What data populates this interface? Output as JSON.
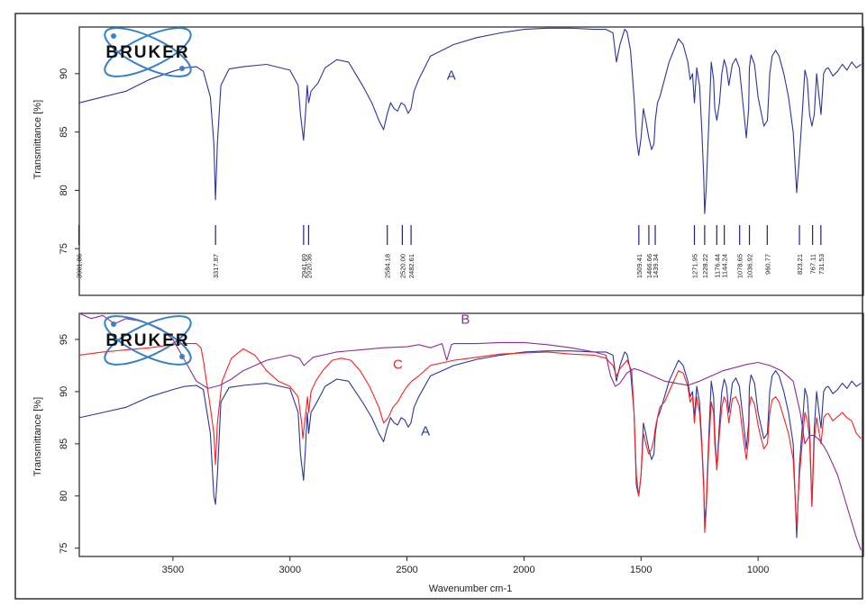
{
  "logo": {
    "text": "BRUKER"
  },
  "colors": {
    "A": "#2a35a0",
    "B": "#8a2c9c",
    "C": "#ff1f1f",
    "peak_marker": "#1f1f8a",
    "logo_blue": "#3a82c8"
  },
  "chart_data": [
    {
      "type": "line",
      "xlabel": "",
      "ylabel": "Transmittance [%]",
      "xlim": [
        3900,
        550
      ],
      "ylim": [
        71,
        94
      ],
      "yticks": [
        75,
        80,
        85,
        90
      ],
      "grid": false,
      "legend": "none",
      "series": [
        {
          "name": "A",
          "x": [
            3900,
            3800,
            3700,
            3600,
            3500,
            3450,
            3400,
            3370,
            3340,
            3325,
            3318,
            3310,
            3295,
            3260,
            3200,
            3100,
            3000,
            2965,
            2955,
            2942,
            2934,
            2926,
            2920,
            2910,
            2880,
            2850,
            2800,
            2750,
            2720,
            2690,
            2650,
            2620,
            2600,
            2585,
            2570,
            2555,
            2540,
            2525,
            2510,
            2495,
            2483,
            2470,
            2450,
            2400,
            2350,
            2300,
            2200,
            2100,
            2000,
            1900,
            1800,
            1700,
            1650,
            1620,
            1605,
            1590,
            1570,
            1560,
            1545,
            1530,
            1520,
            1510,
            1500,
            1490,
            1480,
            1467,
            1455,
            1445,
            1439,
            1430,
            1420,
            1400,
            1380,
            1360,
            1340,
            1320,
            1300,
            1290,
            1280,
            1272,
            1262,
            1250,
            1240,
            1232,
            1228,
            1222,
            1210,
            1200,
            1190,
            1185,
            1176,
            1165,
            1155,
            1145,
            1135,
            1125,
            1110,
            1095,
            1080,
            1070,
            1060,
            1050,
            1040,
            1037,
            1030,
            1015,
            1000,
            990,
            975,
            960,
            950,
            940,
            925,
            910,
            890,
            870,
            850,
            835,
            823,
            810,
            800,
            790,
            780,
            770,
            760,
            750,
            742,
            731,
            720,
            710,
            700,
            680,
            660,
            640,
            620,
            600,
            580,
            560
          ],
          "values": [
            87.5,
            88,
            88.5,
            89.5,
            90.2,
            90.5,
            90.6,
            90.2,
            88,
            84,
            79.2,
            84,
            89,
            90.4,
            90.6,
            90.8,
            90.3,
            89,
            86.5,
            84.3,
            86.5,
            89,
            87.5,
            88.5,
            89.2,
            90.5,
            91.2,
            91,
            90,
            89,
            87.5,
            86,
            85.2,
            86.5,
            87.5,
            87,
            86.8,
            87.5,
            87.3,
            86.6,
            87,
            88.5,
            89.5,
            91.5,
            92,
            92.5,
            93.1,
            93.5,
            93.8,
            93.9,
            93.9,
            93.8,
            93.8,
            93.5,
            91,
            92.5,
            93.8,
            93.6,
            92,
            88,
            84.5,
            83,
            84.5,
            87,
            86,
            84.5,
            83.5,
            84,
            86,
            87.5,
            88,
            89.5,
            91,
            92,
            93,
            92.5,
            91,
            89.5,
            90,
            87.5,
            90.5,
            89,
            85,
            81,
            78,
            80,
            86,
            91,
            89.5,
            87,
            86,
            87.5,
            90,
            91.2,
            90.5,
            89,
            90.8,
            91.3,
            90.5,
            88.5,
            86.5,
            84.5,
            87,
            90.5,
            91.6,
            90.8,
            88,
            87,
            85.5,
            86,
            90,
            91.5,
            92,
            91.5,
            90,
            88,
            85,
            79.8,
            83,
            87,
            90.3,
            89.5,
            86.5,
            85.5,
            86.5,
            90,
            88.5,
            86.5,
            90,
            90.4,
            90.5,
            89.8,
            90.2,
            90.8,
            90.3,
            91,
            90.5,
            90.8
          ]
        }
      ],
      "peak_labels": [
        "3901.86",
        "3317.87",
        "2941.69",
        "2920.36",
        "2584.18",
        "2520.00",
        "2482.61",
        "1509.41",
        "1466.66",
        "1439.34",
        "1271.95",
        "1228.22",
        "1176.44",
        "1144.24",
        "1078.65",
        "1036.92",
        "960.77",
        "823.21",
        "767.11",
        "731.53"
      ],
      "peak_positions": [
        3901.86,
        3317.87,
        2941.69,
        2920.36,
        2584.18,
        2520.0,
        2482.61,
        1509.41,
        1466.66,
        1439.34,
        1271.95,
        1228.22,
        1176.44,
        1144.24,
        1078.65,
        1036.92,
        960.77,
        823.21,
        767.11,
        731.53
      ],
      "annotations": [
        {
          "text": "A",
          "x": 2330,
          "y": 89.5
        }
      ]
    },
    {
      "type": "line",
      "xlabel": "Wavenumber cm-1",
      "ylabel": "Transmittance [%]",
      "xlim": [
        3900,
        550
      ],
      "ylim": [
        74.2,
        97.5
      ],
      "xticks": [
        3500,
        3000,
        2500,
        2000,
        1500,
        1000
      ],
      "yticks": [
        75,
        80,
        85,
        90,
        95
      ],
      "grid": false,
      "legend": "none",
      "series": [
        {
          "name": "A",
          "x": [
            3900,
            3800,
            3700,
            3600,
            3500,
            3450,
            3400,
            3370,
            3340,
            3325,
            3318,
            3310,
            3295,
            3260,
            3200,
            3100,
            3000,
            2965,
            2955,
            2942,
            2934,
            2926,
            2920,
            2910,
            2880,
            2850,
            2800,
            2750,
            2720,
            2690,
            2650,
            2620,
            2600,
            2585,
            2570,
            2555,
            2540,
            2525,
            2510,
            2495,
            2483,
            2470,
            2450,
            2400,
            2350,
            2300,
            2200,
            2100,
            2000,
            1900,
            1800,
            1700,
            1650,
            1620,
            1605,
            1590,
            1570,
            1560,
            1545,
            1530,
            1520,
            1510,
            1500,
            1490,
            1480,
            1467,
            1455,
            1445,
            1439,
            1430,
            1420,
            1400,
            1380,
            1360,
            1340,
            1320,
            1300,
            1290,
            1280,
            1272,
            1262,
            1250,
            1240,
            1232,
            1228,
            1222,
            1210,
            1200,
            1190,
            1185,
            1176,
            1165,
            1155,
            1145,
            1135,
            1125,
            1110,
            1095,
            1080,
            1070,
            1060,
            1050,
            1040,
            1037,
            1030,
            1015,
            1000,
            990,
            975,
            960,
            950,
            940,
            925,
            910,
            890,
            870,
            850,
            835,
            823,
            810,
            800,
            790,
            780,
            770,
            760,
            750,
            742,
            731,
            720,
            710,
            700,
            680,
            660,
            640,
            620,
            600,
            580,
            560
          ],
          "values": [
            87.5,
            88,
            88.5,
            89.5,
            90.2,
            90.5,
            90.6,
            90.2,
            86,
            80,
            79.2,
            82,
            89,
            90.4,
            90.6,
            90.8,
            90.3,
            88,
            84,
            81.5,
            84.5,
            88,
            86,
            88,
            89.2,
            90.5,
            91.2,
            91,
            90,
            89,
            87.5,
            86,
            85.2,
            86.5,
            87.5,
            87,
            86.8,
            87.5,
            87.3,
            86.6,
            87,
            88.5,
            89.5,
            91.5,
            92,
            92.5,
            93.1,
            93.5,
            93.8,
            93.9,
            93.9,
            93.8,
            93.8,
            93.5,
            91,
            92.5,
            93.8,
            93.6,
            92,
            88,
            81,
            80,
            82,
            87,
            86,
            84.5,
            83.5,
            84,
            86,
            87.5,
            88,
            89.5,
            91,
            92,
            93,
            92.5,
            91,
            89.5,
            90,
            87.5,
            90.5,
            89,
            85,
            81,
            77.5,
            79,
            86,
            91,
            89.5,
            86,
            82.5,
            87,
            90,
            91.2,
            90.5,
            88,
            90.8,
            91.3,
            90.5,
            88.5,
            86.5,
            84.5,
            87,
            90.5,
            91.6,
            90.8,
            88,
            87,
            85.5,
            86,
            90,
            91.5,
            92,
            91.5,
            90,
            88,
            85,
            76,
            83,
            87,
            90.3,
            89.5,
            86.5,
            79,
            86.5,
            90,
            88.5,
            86.5,
            90,
            90.4,
            90.5,
            89.8,
            90.2,
            90.8,
            90.3,
            91,
            90.5,
            90.8
          ]
        },
        {
          "name": "B",
          "x": [
            3900,
            3850,
            3800,
            3750,
            3700,
            3650,
            3600,
            3550,
            3500,
            3450,
            3400,
            3350,
            3300,
            3250,
            3200,
            3100,
            3000,
            2960,
            2940,
            2900,
            2800,
            2700,
            2600,
            2500,
            2450,
            2400,
            2350,
            2330,
            2310,
            2300,
            2200,
            2100,
            2000,
            1900,
            1800,
            1700,
            1650,
            1630,
            1610,
            1590,
            1560,
            1530,
            1500,
            1450,
            1400,
            1350,
            1300,
            1250,
            1200,
            1150,
            1100,
            1050,
            1000,
            950,
            900,
            850,
            820,
            800,
            780,
            760,
            740,
            720,
            700,
            680,
            660,
            640,
            620,
            600,
            580,
            560
          ],
          "values": [
            97.5,
            97,
            97.3,
            96.5,
            97,
            96.8,
            96.5,
            96,
            95,
            93,
            91,
            90.3,
            90.6,
            91.2,
            92,
            93,
            93.5,
            93.2,
            92.5,
            93.3,
            93.8,
            94,
            94.2,
            94.3,
            94.5,
            94.2,
            94.6,
            93,
            94.5,
            94.6,
            94.6,
            94.7,
            94.7,
            94.5,
            94.2,
            93.8,
            93.5,
            91.5,
            90.5,
            90.8,
            91.8,
            92.2,
            92,
            91.5,
            91,
            90.8,
            90.6,
            91,
            91.5,
            92,
            92.3,
            92.6,
            92.8,
            92.5,
            92,
            91,
            88,
            85,
            85.8,
            85.8,
            85.4,
            84.8,
            84,
            83,
            82,
            80.5,
            79,
            77.5,
            76,
            74.8
          ]
        },
        {
          "name": "C",
          "x": [
            3900,
            3800,
            3700,
            3600,
            3500,
            3450,
            3400,
            3380,
            3370,
            3360,
            3350,
            3340,
            3325,
            3318,
            3310,
            3290,
            3250,
            3200,
            3150,
            3100,
            3050,
            3000,
            2965,
            2950,
            2945,
            2935,
            2925,
            2920,
            2910,
            2890,
            2860,
            2820,
            2780,
            2740,
            2700,
            2660,
            2620,
            2600,
            2580,
            2560,
            2540,
            2520,
            2500,
            2480,
            2450,
            2400,
            2300,
            2200,
            2100,
            2000,
            1900,
            1800,
            1700,
            1650,
            1620,
            1605,
            1590,
            1560,
            1540,
            1530,
            1520,
            1510,
            1500,
            1490,
            1480,
            1467,
            1455,
            1445,
            1439,
            1430,
            1420,
            1400,
            1380,
            1360,
            1340,
            1320,
            1300,
            1290,
            1280,
            1272,
            1262,
            1250,
            1240,
            1232,
            1228,
            1222,
            1210,
            1200,
            1190,
            1185,
            1176,
            1165,
            1155,
            1145,
            1135,
            1125,
            1110,
            1095,
            1080,
            1070,
            1060,
            1050,
            1040,
            1037,
            1030,
            1015,
            1000,
            990,
            975,
            960,
            950,
            940,
            925,
            910,
            890,
            870,
            850,
            835,
            823,
            810,
            800,
            790,
            780,
            770,
            760,
            750,
            742,
            731,
            720,
            710,
            700,
            680,
            660,
            640,
            620,
            600,
            580,
            560
          ],
          "values": [
            93.5,
            93.8,
            94,
            94.2,
            94.5,
            94.6,
            94.6,
            94.2,
            93,
            91.5,
            90,
            88.5,
            86,
            83,
            87,
            91,
            93.2,
            94.1,
            93.5,
            92,
            91,
            90.5,
            89.5,
            87,
            85.5,
            87.5,
            89.5,
            88,
            90,
            91,
            92,
            93,
            93.2,
            93,
            92,
            90.5,
            88.5,
            87,
            87.5,
            88.5,
            89,
            89.8,
            90.5,
            91,
            91.5,
            92.5,
            93,
            93.3,
            93.6,
            93.7,
            93.8,
            93.6,
            93.5,
            93.2,
            92.5,
            91.5,
            92.2,
            93,
            92,
            88,
            82,
            80,
            82,
            86,
            85,
            84,
            84.5,
            85.5,
            86.5,
            87.5,
            88.5,
            89,
            90,
            91,
            92,
            91.8,
            90.5,
            89,
            89.5,
            87,
            89.5,
            88,
            84.5,
            80.5,
            76.5,
            78.5,
            85,
            89,
            88,
            85,
            82.5,
            86,
            88.5,
            89.5,
            89,
            87,
            89.3,
            89.5,
            88.6,
            86.8,
            85,
            83.5,
            85.5,
            88.5,
            89.5,
            88.8,
            86.8,
            85.8,
            84.5,
            85,
            88,
            89.2,
            89.5,
            89,
            87.5,
            86,
            83.5,
            77,
            82,
            85.5,
            88,
            87.3,
            85.5,
            79,
            85.3,
            87.5,
            86.5,
            85,
            87.5,
            87.8,
            87.9,
            87.2,
            87.6,
            88,
            87.5,
            87.2,
            86,
            85.5
          ]
        }
      ],
      "annotations": [
        {
          "text": "B",
          "x": 2270,
          "y": 96.5
        },
        {
          "text": "C",
          "x": 2560,
          "y": 92.2
        },
        {
          "text": "A",
          "x": 2440,
          "y": 85.8
        }
      ]
    }
  ]
}
